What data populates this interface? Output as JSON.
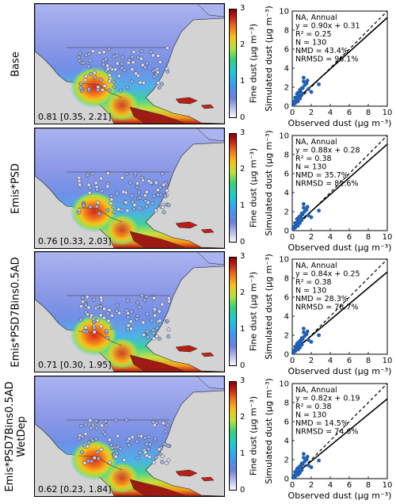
{
  "colorbar": {
    "label": "Fine dust (μg m⁻³)",
    "ticks": [
      "0",
      "1",
      "2",
      "3"
    ]
  },
  "scatter_axes": {
    "xlabel": "Observed dust (μg m⁻³)",
    "ylabel": "Simulated dust (μg m⁻³)",
    "ticks": [
      "0",
      "2",
      "4",
      "6",
      "8",
      "10"
    ]
  },
  "colors": {
    "points": "#1f5fb4",
    "ocean": "#d3d3d3"
  },
  "chart_data": [
    {
      "type": "scatter",
      "row_label": "Base",
      "map_stat": "0.81 [0.35, 2.21]",
      "region": "NA, Annual",
      "equation": "y = 0.90x + 0.31",
      "r2": "R² = 0.25",
      "n": "N = 130",
      "nmd": "NMD = 43.4%",
      "nrmsd": "NRMSD = 96.1%",
      "fit": {
        "slope": 0.9,
        "intercept": 0.31
      },
      "xlim": [
        0,
        10
      ],
      "ylim": [
        0,
        10
      ],
      "x": [
        0.1,
        0.2,
        0.3,
        0.4,
        0.5,
        0.6,
        0.7,
        0.8,
        0.9,
        1.0,
        1.1,
        1.2,
        1.3,
        1.5,
        1.7,
        2.0,
        2.8,
        0.5,
        0.8,
        1.2,
        0.3,
        1.6,
        0.6,
        1.0
      ],
      "y": [
        0.2,
        0.5,
        0.3,
        0.7,
        0.9,
        0.5,
        1.1,
        0.8,
        1.5,
        1.2,
        1.9,
        2.6,
        2.2,
        2.4,
        1.8,
        1.5,
        2.3,
        1.3,
        1.7,
        3.0,
        0.9,
        2.7,
        1.4,
        1.9
      ]
    },
    {
      "type": "scatter",
      "row_label": "Emis*PSD",
      "map_stat": "0.76 [0.33, 2.03]",
      "region": "NA, Annual",
      "equation": "y = 0.88x + 0.28",
      "r2": "R² = 0.38",
      "n": "N = 130",
      "nmd": "NMD = 35.7%",
      "nrmsd": "NRMSD = 82.6%",
      "fit": {
        "slope": 0.88,
        "intercept": 0.28
      },
      "xlim": [
        0,
        10
      ],
      "ylim": [
        0,
        10
      ],
      "x": [
        0.1,
        0.2,
        0.3,
        0.4,
        0.5,
        0.6,
        0.7,
        0.8,
        0.9,
        1.0,
        1.1,
        1.2,
        1.3,
        1.5,
        1.7,
        2.0,
        2.8,
        0.5,
        0.8,
        1.2,
        0.3,
        1.6,
        0.6,
        1.0
      ],
      "y": [
        0.2,
        0.4,
        0.3,
        0.6,
        0.8,
        0.5,
        1.0,
        0.8,
        1.4,
        1.1,
        1.7,
        2.4,
        2.0,
        2.2,
        1.6,
        1.4,
        2.1,
        1.2,
        1.5,
        2.8,
        0.8,
        2.5,
        1.3,
        1.8
      ]
    },
    {
      "type": "scatter",
      "row_label": "Emis*PSD7Bins0.5AD",
      "map_stat": "0.71 [0.30, 1.95]",
      "region": "NA, Annual",
      "equation": "y = 0.84x + 0.25",
      "r2": "R² = 0.38",
      "n": "N = 130",
      "nmd": "NMD = 28.3%",
      "nrmsd": "NRMSD = 78.7%",
      "fit": {
        "slope": 0.84,
        "intercept": 0.25
      },
      "xlim": [
        0,
        10
      ],
      "ylim": [
        0,
        10
      ],
      "x": [
        0.1,
        0.2,
        0.3,
        0.4,
        0.5,
        0.6,
        0.7,
        0.8,
        0.9,
        1.0,
        1.1,
        1.2,
        1.3,
        1.5,
        1.7,
        2.0,
        2.8,
        0.5,
        0.8,
        1.2,
        0.3,
        1.6,
        0.6,
        1.0
      ],
      "y": [
        0.2,
        0.4,
        0.3,
        0.6,
        0.7,
        0.5,
        0.9,
        0.7,
        1.3,
        1.0,
        1.6,
        2.3,
        1.9,
        2.1,
        1.5,
        1.3,
        2.0,
        1.1,
        1.4,
        2.7,
        0.8,
        2.4,
        1.2,
        1.7
      ]
    },
    {
      "type": "scatter",
      "row_label": "Emis*PSD7Bins0.5AD WetDep",
      "map_stat": "0.62 [0.23, 1.84]",
      "region": "NA, Annual",
      "equation": "y = 0.82x + 0.19",
      "r2": "R² = 0.38",
      "n": "N = 130",
      "nmd": "NMD = 14.5%",
      "nrmsd": "NRMSD = 74.6%",
      "fit": {
        "slope": 0.82,
        "intercept": 0.19
      },
      "xlim": [
        0,
        10
      ],
      "ylim": [
        0,
        10
      ],
      "x": [
        0.1,
        0.2,
        0.3,
        0.4,
        0.5,
        0.6,
        0.7,
        0.8,
        0.9,
        1.0,
        1.1,
        1.2,
        1.3,
        1.5,
        1.7,
        2.0,
        2.8,
        0.5,
        0.8,
        1.2,
        0.3,
        1.6,
        0.6,
        1.0
      ],
      "y": [
        0.1,
        0.3,
        0.2,
        0.5,
        0.6,
        0.4,
        0.8,
        0.6,
        1.2,
        0.9,
        1.5,
        2.2,
        1.8,
        2.0,
        1.4,
        1.2,
        1.9,
        1.0,
        1.3,
        2.6,
        0.7,
        2.3,
        1.1,
        1.6
      ]
    }
  ]
}
